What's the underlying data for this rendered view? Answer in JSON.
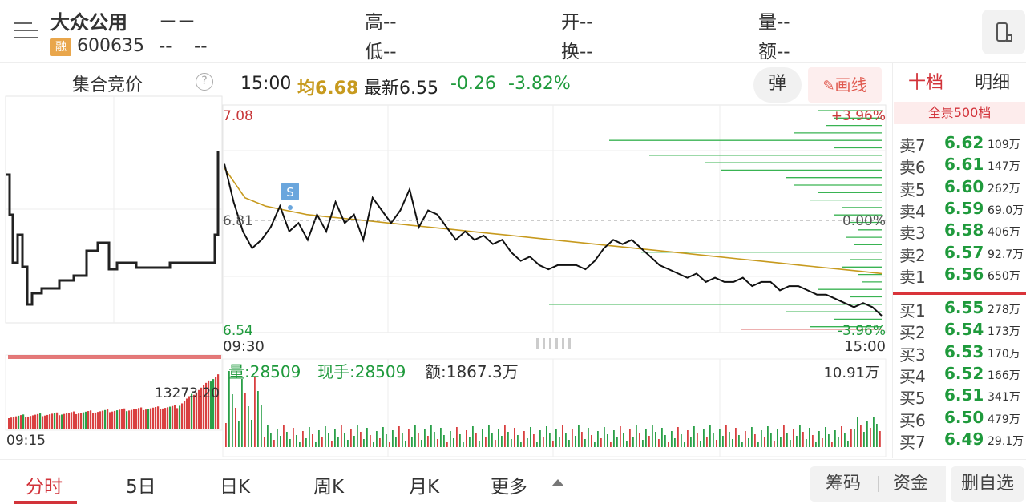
{
  "stock": {
    "name": "大众公用",
    "code": "600635",
    "rong_badge": "融",
    "price": "－－",
    "chg1": "--",
    "chg2": "--"
  },
  "quote": {
    "high": "高--",
    "low": "低--",
    "open": "开--",
    "turnover": "换--",
    "volume": "量--",
    "amount": "额--"
  },
  "auction": {
    "title": "集合竞价",
    "help": "?",
    "value": "13273.20",
    "start_time": "09:15"
  },
  "bar": {
    "time": "15:00",
    "avg": "均6.68",
    "last": "最新6.55",
    "change": "-0.26",
    "change_pct": "-3.82%"
  },
  "buttons": {
    "danmu": "弹",
    "draw": "画线"
  },
  "chart": {
    "y_high": "7.08",
    "y_mid": "6.81",
    "y_low": "6.54",
    "pct_high": "+3.96%",
    "pct_mid": "0.00%",
    "pct_low": "-3.96%",
    "x_start": "09:30",
    "x_end": "15:00",
    "marker": "S",
    "vol_label": "量:28509",
    "hand_label": "现手:28509",
    "amt_label": "额:1867.3万",
    "vol_max": "10.91万"
  },
  "chart_data": {
    "type": "line",
    "title": "",
    "xlabel": "",
    "ylabel": "",
    "x_ticks": [
      "09:30",
      "15:00"
    ],
    "ylim": [
      6.54,
      7.08
    ],
    "prev_close": 6.81,
    "series": [
      {
        "values": [
          6.94,
          6.85,
          6.78,
          6.74,
          6.76,
          6.79,
          6.84,
          6.78,
          6.8,
          6.76,
          6.82,
          6.78,
          6.85,
          6.8,
          6.82,
          6.76,
          6.86,
          6.83,
          6.8,
          6.83,
          6.88,
          6.79,
          6.83,
          6.82,
          6.79,
          6.76,
          6.78,
          6.76,
          6.77,
          6.75,
          6.76,
          6.73,
          6.71,
          6.72,
          6.7,
          6.69,
          6.7,
          6.7,
          6.7,
          6.69,
          6.71,
          6.74,
          6.76,
          6.75,
          6.76,
          6.74,
          6.72,
          6.7,
          6.69,
          6.68,
          6.67,
          6.68,
          6.66,
          6.67,
          6.66,
          6.66,
          6.67,
          6.65,
          6.66,
          6.66,
          6.64,
          6.65,
          6.65,
          6.64,
          6.63,
          6.63,
          6.62,
          6.61,
          6.6,
          6.61,
          6.6,
          6.58
        ]
      },
      {
        "values": [
          6.93,
          6.86,
          6.84,
          6.83,
          6.82,
          6.815,
          6.81,
          6.805,
          6.8,
          6.795,
          6.79,
          6.785,
          6.78,
          6.775,
          6.77,
          6.765,
          6.76,
          6.755,
          6.75,
          6.745,
          6.74,
          6.735,
          6.73,
          6.725,
          6.72,
          6.715,
          6.71,
          6.705,
          6.7,
          6.695,
          6.69,
          6.685,
          6.68
        ]
      }
    ],
    "order_book": {
      "sell": [
        {
          "label": "卖7",
          "price": "6.62",
          "volume": "109万"
        },
        {
          "label": "卖6",
          "price": "6.61",
          "volume": "147万"
        },
        {
          "label": "卖5",
          "price": "6.60",
          "volume": "262万"
        },
        {
          "label": "卖4",
          "price": "6.59",
          "volume": "69.0万"
        },
        {
          "label": "卖3",
          "price": "6.58",
          "volume": "406万"
        },
        {
          "label": "卖2",
          "price": "6.57",
          "volume": "92.7万"
        },
        {
          "label": "卖1",
          "price": "6.56",
          "volume": "650万"
        }
      ],
      "buy": [
        {
          "label": "买1",
          "price": "6.55",
          "volume": "278万"
        },
        {
          "label": "买2",
          "price": "6.54",
          "volume": "173万"
        },
        {
          "label": "买3",
          "price": "6.53",
          "volume": "170万"
        },
        {
          "label": "买4",
          "price": "6.52",
          "volume": "166万"
        },
        {
          "label": "买5",
          "price": "6.51",
          "volume": "341万"
        },
        {
          "label": "买6",
          "price": "6.50",
          "volume": "479万"
        },
        {
          "label": "买7",
          "price": "6.49",
          "volume": "29.1万"
        }
      ]
    }
  },
  "panel": {
    "tab1": "十档",
    "tab2": "明细",
    "full": "全景500档"
  },
  "nav": {
    "fenshi": "分时",
    "day5": "5日",
    "dayk": "日K",
    "weekk": "周K",
    "monthk": "月K",
    "more": "更多",
    "chouma": "筹码",
    "zijin": "资金",
    "zixuan": "删自选"
  },
  "colors": {
    "up": "#d2333a",
    "down": "#1f9a3c",
    "avg": "#c79a1e",
    "price": "#111111"
  }
}
